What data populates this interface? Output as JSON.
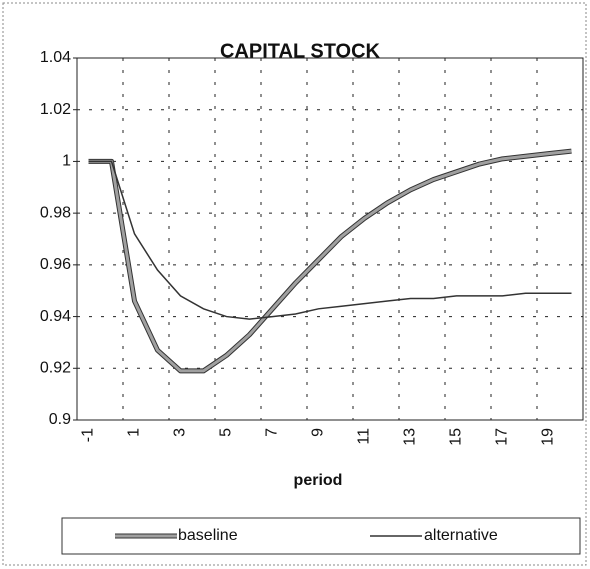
{
  "chart_data": {
    "type": "line",
    "title": "CAPITAL STOCK",
    "x_label": "period",
    "categories": [
      "-1",
      null,
      "1",
      null,
      "3",
      null,
      "5",
      null,
      "7",
      null,
      "9",
      null,
      "11",
      null,
      "13",
      null,
      "15",
      null,
      "17",
      null,
      "19",
      null
    ],
    "series": [
      {
        "name": "baseline",
        "color": "#a0a0a0",
        "values": [
          1,
          1,
          0.946,
          0.927,
          0.919,
          0.919,
          0.925,
          0.933,
          0.943,
          0.953,
          0.962,
          0.971,
          0.978,
          0.984,
          0.989,
          0.993,
          0.996,
          0.999,
          1.001,
          1.002,
          1.003,
          1.004
        ]
      },
      {
        "name": "alternative",
        "color": "#333333",
        "values": [
          1,
          1,
          0.972,
          0.958,
          0.948,
          0.943,
          0.94,
          0.939,
          0.94,
          0.941,
          0.943,
          0.944,
          0.945,
          0.946,
          0.947,
          0.947,
          0.948,
          0.948,
          0.948,
          0.949,
          0.949,
          0.949
        ]
      }
    ],
    "ylim": [
      0.9,
      1.04
    ],
    "yticks": [
      0.9,
      0.92,
      0.94,
      0.96,
      0.98,
      1,
      1.02,
      1.04
    ],
    "grid": true,
    "legend": "bottom"
  }
}
